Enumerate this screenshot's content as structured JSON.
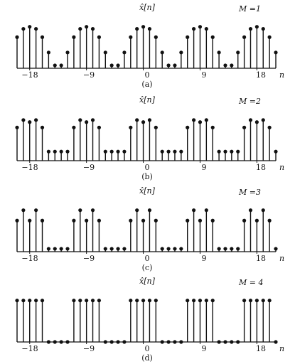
{
  "chart_data": [
    {
      "type": "stem",
      "caption": "(a)",
      "title": "x̂[n]",
      "annotation": "M =1",
      "xlabel": "n",
      "xticks": [
        -18,
        -9,
        0,
        9,
        18
      ],
      "xtick_labels": [
        "−18",
        "−9",
        "0",
        "9",
        "18"
      ],
      "xlim": [
        -20,
        21
      ],
      "ylim": [
        0,
        1.2
      ],
      "period": 9,
      "one_period": {
        "n": [
          -4,
          -3,
          -2,
          -1,
          0,
          1,
          2,
          3,
          4
        ],
        "values": [
          0.07,
          0.38,
          0.75,
          0.95,
          1.0,
          0.95,
          0.75,
          0.38,
          0.07
        ]
      }
    },
    {
      "type": "stem",
      "caption": "(b)",
      "title": "x̂[n]",
      "annotation": "M =2",
      "xlabel": "n",
      "xticks": [
        -18,
        -9,
        0,
        9,
        18
      ],
      "xtick_labels": [
        "−18",
        "−9",
        "0",
        "9",
        "18"
      ],
      "xlim": [
        -20,
        21
      ],
      "ylim": [
        0,
        1.2
      ],
      "period": 9,
      "one_period": {
        "n": [
          -4,
          -3,
          -2,
          -1,
          0,
          1,
          2,
          3,
          4
        ],
        "values": [
          0.22,
          0.22,
          0.8,
          0.98,
          0.93,
          0.98,
          0.8,
          0.22,
          0.22
        ]
      }
    },
    {
      "type": "stem",
      "caption": "(c)",
      "title": "x̂[n]",
      "annotation": "M =3",
      "xlabel": "n",
      "xticks": [
        -18,
        -9,
        0,
        9,
        18
      ],
      "xtick_labels": [
        "−18",
        "−9",
        "0",
        "9",
        "18"
      ],
      "xlim": [
        -20,
        21
      ],
      "ylim": [
        0,
        1.2
      ],
      "period": 9,
      "one_period": {
        "n": [
          -4,
          -3,
          -2,
          -1,
          0,
          1,
          2,
          3,
          4
        ],
        "values": [
          0.07,
          0.07,
          0.75,
          1.0,
          0.75,
          1.0,
          0.75,
          0.07,
          0.07
        ]
      }
    },
    {
      "type": "stem",
      "caption": "(d)",
      "title": "x̂[n]",
      "annotation": "M = 4",
      "xlabel": "n",
      "xticks": [
        -18,
        -9,
        0,
        9,
        18
      ],
      "xtick_labels": [
        "−18",
        "−9",
        "0",
        "9",
        "18"
      ],
      "xlim": [
        -20,
        21
      ],
      "ylim": [
        0,
        1.2
      ],
      "period": 9,
      "one_period": {
        "n": [
          -4,
          -3,
          -2,
          -1,
          0,
          1,
          2,
          3,
          4
        ],
        "values": [
          0.0,
          0.0,
          1.0,
          1.0,
          1.0,
          1.0,
          1.0,
          0.0,
          0.0
        ]
      }
    }
  ]
}
